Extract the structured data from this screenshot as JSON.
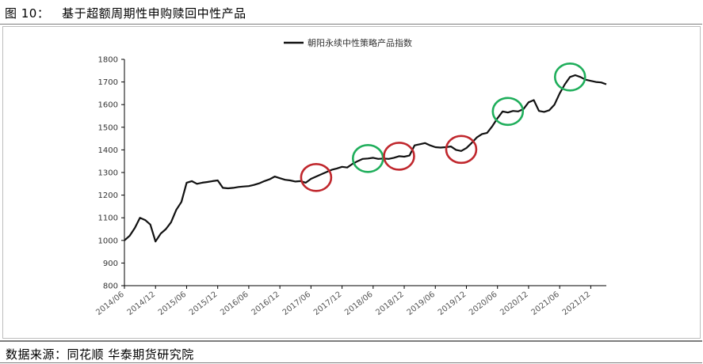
{
  "figure": {
    "title": "图 10：   基于超额周期性申购赎回中性产品",
    "source": "数据来源：同花顺 华泰期货研究院"
  },
  "colors": {
    "line": "#111111",
    "red_marker": "#c0272d",
    "green_marker": "#1fae5b",
    "axis": "#000000"
  },
  "chart_data": {
    "type": "line",
    "title": "",
    "xlabel": "",
    "ylabel": "",
    "ylim": [
      800,
      1800
    ],
    "yticks": [
      800,
      900,
      1000,
      1100,
      1200,
      1300,
      1400,
      1500,
      1600,
      1700,
      1800
    ],
    "xlim": [
      "2014-06",
      "2022-03"
    ],
    "xticks": [
      "2014/06",
      "2014/12",
      "2015/06",
      "2015/12",
      "2016/06",
      "2016/12",
      "2017/06",
      "2017/12",
      "2018/06",
      "2018/12",
      "2019/06",
      "2019/12",
      "2020/06",
      "2020/12",
      "2021/06",
      "2021/12"
    ],
    "legend": {
      "position": "top",
      "entries": [
        "朝阳永续中性策略产品指数"
      ]
    },
    "series": [
      {
        "name": "朝阳永续中性策略产品指数",
        "points": [
          [
            "2014-06",
            1000
          ],
          [
            "2014-07",
            1020
          ],
          [
            "2014-08",
            1055
          ],
          [
            "2014-09",
            1100
          ],
          [
            "2014-10",
            1090
          ],
          [
            "2014-11",
            1070
          ],
          [
            "2014-12",
            995
          ],
          [
            "2015-01",
            1030
          ],
          [
            "2015-02",
            1050
          ],
          [
            "2015-03",
            1080
          ],
          [
            "2015-04",
            1135
          ],
          [
            "2015-05",
            1170
          ],
          [
            "2015-06",
            1255
          ],
          [
            "2015-07",
            1262
          ],
          [
            "2015-08",
            1250
          ],
          [
            "2015-09",
            1255
          ],
          [
            "2015-10",
            1258
          ],
          [
            "2015-11",
            1262
          ],
          [
            "2015-12",
            1265
          ],
          [
            "2016-01",
            1232
          ],
          [
            "2016-02",
            1230
          ],
          [
            "2016-03",
            1232
          ],
          [
            "2016-04",
            1236
          ],
          [
            "2016-05",
            1238
          ],
          [
            "2016-06",
            1240
          ],
          [
            "2016-07",
            1245
          ],
          [
            "2016-08",
            1252
          ],
          [
            "2016-09",
            1262
          ],
          [
            "2016-10",
            1270
          ],
          [
            "2016-11",
            1282
          ],
          [
            "2016-12",
            1275
          ],
          [
            "2017-01",
            1268
          ],
          [
            "2017-02",
            1265
          ],
          [
            "2017-03",
            1260
          ],
          [
            "2017-04",
            1262
          ],
          [
            "2017-05",
            1255
          ],
          [
            "2017-06",
            1272
          ],
          [
            "2017-07",
            1282
          ],
          [
            "2017-08",
            1292
          ],
          [
            "2017-09",
            1302
          ],
          [
            "2017-10",
            1312
          ],
          [
            "2017-11",
            1318
          ],
          [
            "2017-12",
            1325
          ],
          [
            "2018-01",
            1322
          ],
          [
            "2018-02",
            1338
          ],
          [
            "2018-03",
            1350
          ],
          [
            "2018-04",
            1360
          ],
          [
            "2018-05",
            1362
          ],
          [
            "2018-06",
            1365
          ],
          [
            "2018-07",
            1360
          ],
          [
            "2018-08",
            1362
          ],
          [
            "2018-09",
            1360
          ],
          [
            "2018-10",
            1365
          ],
          [
            "2018-11",
            1372
          ],
          [
            "2018-12",
            1370
          ],
          [
            "2019-01",
            1375
          ],
          [
            "2019-02",
            1420
          ],
          [
            "2019-03",
            1425
          ],
          [
            "2019-04",
            1430
          ],
          [
            "2019-05",
            1420
          ],
          [
            "2019-06",
            1412
          ],
          [
            "2019-07",
            1410
          ],
          [
            "2019-08",
            1412
          ],
          [
            "2019-09",
            1415
          ],
          [
            "2019-10",
            1400
          ],
          [
            "2019-11",
            1395
          ],
          [
            "2019-12",
            1408
          ],
          [
            "2020-01",
            1430
          ],
          [
            "2020-02",
            1455
          ],
          [
            "2020-03",
            1470
          ],
          [
            "2020-04",
            1475
          ],
          [
            "2020-05",
            1505
          ],
          [
            "2020-06",
            1540
          ],
          [
            "2020-07",
            1570
          ],
          [
            "2020-08",
            1565
          ],
          [
            "2020-09",
            1572
          ],
          [
            "2020-10",
            1570
          ],
          [
            "2020-11",
            1580
          ],
          [
            "2020-12",
            1610
          ],
          [
            "2021-01",
            1620
          ],
          [
            "2021-02",
            1572
          ],
          [
            "2021-03",
            1568
          ],
          [
            "2021-04",
            1575
          ],
          [
            "2021-05",
            1600
          ],
          [
            "2021-06",
            1650
          ],
          [
            "2021-07",
            1690
          ],
          [
            "2021-08",
            1722
          ],
          [
            "2021-09",
            1730
          ],
          [
            "2021-10",
            1722
          ],
          [
            "2021-11",
            1710
          ],
          [
            "2021-12",
            1705
          ],
          [
            "2022-01",
            1700
          ],
          [
            "2022-02",
            1698
          ],
          [
            "2022-03",
            1690
          ]
        ]
      }
    ],
    "annotations": [
      {
        "shape": "circle",
        "color": "red",
        "center": [
          "2017-07",
          1278
        ]
      },
      {
        "shape": "circle",
        "color": "green",
        "center": [
          "2018-05",
          1362
        ]
      },
      {
        "shape": "circle",
        "color": "red",
        "center": [
          "2018-11",
          1372
        ]
      },
      {
        "shape": "circle",
        "color": "red",
        "center": [
          "2019-11",
          1402
        ]
      },
      {
        "shape": "circle",
        "color": "green",
        "center": [
          "2020-08",
          1570
        ]
      },
      {
        "shape": "circle",
        "color": "green",
        "center": [
          "2021-08",
          1722
        ]
      }
    ]
  }
}
